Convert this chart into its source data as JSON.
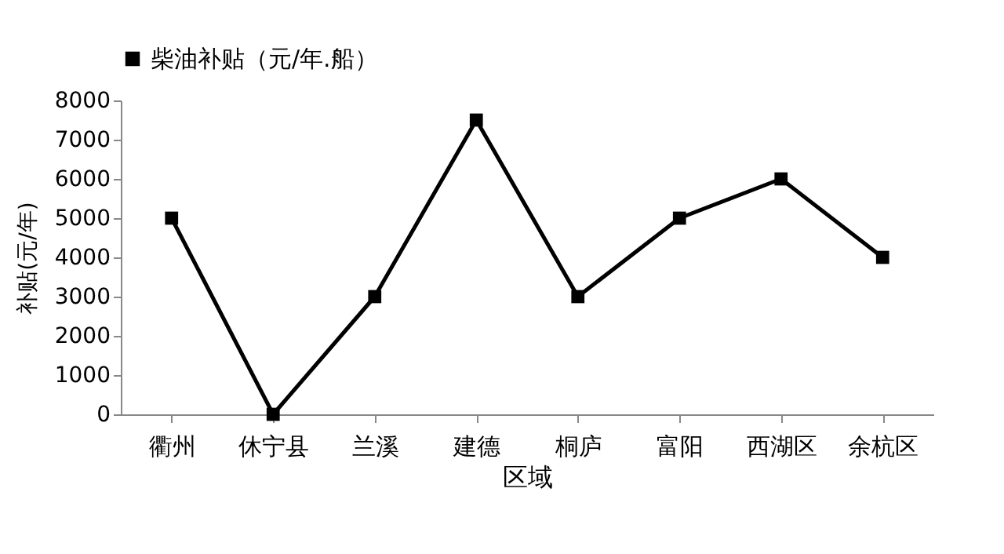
{
  "chart_data": {
    "type": "line",
    "xlabel": "区域",
    "ylabel": "补贴(元/年)",
    "categories": [
      "衢州",
      "休宁县",
      "兰溪",
      "建德",
      "桐庐",
      "富阳",
      "西湖区",
      "余杭区"
    ],
    "series": [
      {
        "name": "柴油补贴（元/年.船）",
        "color": "#000000",
        "values": [
          5000,
          0,
          3000,
          7500,
          3000,
          5000,
          6000,
          4000
        ]
      }
    ],
    "ylim": [
      0,
      8000
    ],
    "yticks": [
      0,
      1000,
      2000,
      3000,
      4000,
      5000,
      6000,
      7000,
      8000
    ],
    "grid": false,
    "legend": "top left",
    "marker": "square",
    "line_style": "solid"
  }
}
